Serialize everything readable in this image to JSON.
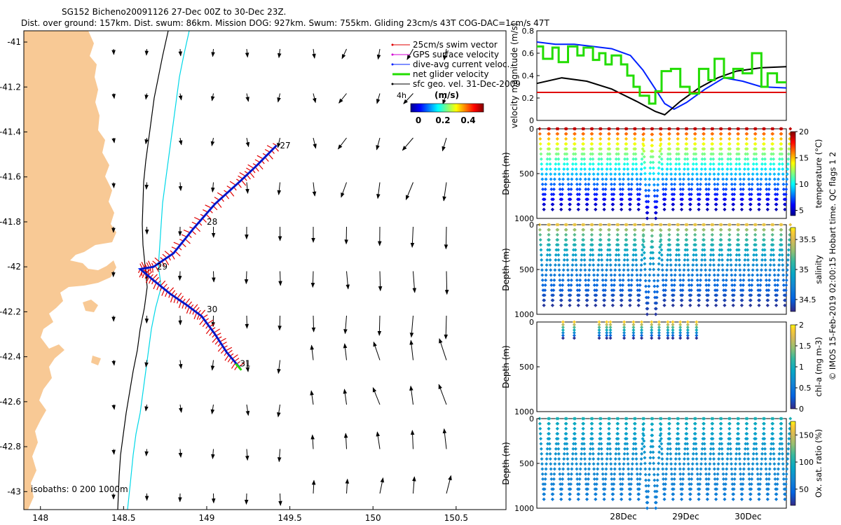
{
  "header": {
    "title": "SG152 Bicheno20091126 27-Dec 00Z to 30-Dec 23Z.",
    "subtitle": "Dist. over ground: 157km. Dist. swum: 86km. Mission DOG: 927km. Swum: 755km. Gliding 23cm/s 43T COG-DAC=1cm/s 47T"
  },
  "side_text": "© IMOS 15-Feb-2019 02:00:15 Hobart time. QC flags 1  2",
  "colors": {
    "land": "#f8c995",
    "swim": "#e00000",
    "gps": "#d400d4",
    "dac": "#0020ff",
    "net": "#22dd00",
    "sfc": "#000000",
    "iso0": "#000000",
    "iso200": "#00d8e8"
  },
  "chart_data": [
    {
      "id": "map",
      "type": "scatter",
      "xlim": [
        147.9,
        150.8
      ],
      "ylim": [
        -43.08,
        -40.95
      ],
      "xticks": [
        148,
        148.5,
        149,
        149.5,
        150,
        150.5
      ],
      "xtick_labels": [
        "148",
        "148.5",
        "149",
        "149.5",
        "150",
        "150.5"
      ],
      "yticks": [
        -41,
        -41.2,
        -41.4,
        -41.6,
        -41.8,
        -42,
        -42.2,
        -42.4,
        -42.6,
        -42.8,
        -43
      ],
      "ytick_labels": [
        "-41",
        "-41.2",
        "-41.4",
        "-41.6",
        "-41.8",
        "-42",
        "-42.2",
        "-42.4",
        "-42.6",
        "-42.8",
        "-43"
      ],
      "legend": {
        "entries": [
          "25cm/s swim vector",
          "GPS surface velocity",
          "dive-avg current veloc.",
          "net glider velocity",
          "sfc geo. vel. 31-Dec-2009"
        ],
        "colorbar_label": "(m/s)",
        "colorbar_ticks": [
          "0",
          "0.2",
          "0.4"
        ],
        "time_label": "4h",
        "placement": "top-right"
      },
      "isobaths_label": "isobaths: 0   200  1000m",
      "track": {
        "lon": [
          149.42,
          149.3,
          149.2,
          149.05,
          148.92,
          148.8,
          148.68,
          148.6,
          148.68,
          148.78,
          148.88,
          148.97,
          149.05,
          149.12,
          149.2
        ],
        "lat": [
          -41.46,
          -41.55,
          -41.62,
          -41.72,
          -41.83,
          -41.94,
          -42.0,
          -42.01,
          -42.06,
          -42.12,
          -42.17,
          -42.22,
          -42.3,
          -42.38,
          -42.45
        ]
      },
      "day_labels": [
        {
          "text": "27",
          "lon": 149.44,
          "lat": -41.46
        },
        {
          "text": "28",
          "lon": 149.0,
          "lat": -41.8
        },
        {
          "text": "29",
          "lon": 148.7,
          "lat": -42.0
        },
        {
          "text": "30",
          "lon": 149.0,
          "lat": -42.19
        },
        {
          "text": "31",
          "lon": 149.2,
          "lat": -42.43
        }
      ]
    },
    {
      "id": "velocity",
      "type": "line",
      "ylabel": "velocity magnitude (m/s)",
      "ylim": [
        0,
        0.8
      ],
      "yticks": [
        0,
        0.2,
        0.4,
        0.6,
        0.8
      ],
      "ytick_labels": [
        "0",
        "0.2",
        "0.4",
        "0.6",
        "0.8"
      ],
      "xlim": [
        0,
        4
      ],
      "series": [
        {
          "name": "dive-avg current veloc.",
          "x": [
            0,
            0.3,
            0.6,
            0.9,
            1.2,
            1.5,
            1.7,
            1.9,
            2.05,
            2.2,
            2.4,
            2.7,
            3.0,
            3.3,
            3.6,
            4.0
          ],
          "y": [
            0.7,
            0.68,
            0.68,
            0.66,
            0.64,
            0.58,
            0.45,
            0.28,
            0.15,
            0.1,
            0.16,
            0.28,
            0.38,
            0.35,
            0.3,
            0.29
          ]
        },
        {
          "name": "sfc geo. vel. 31-Dec-2009",
          "x": [
            0,
            0.4,
            0.8,
            1.2,
            1.6,
            1.9,
            2.05,
            2.3,
            2.6,
            2.9,
            3.2,
            3.6,
            4.0
          ],
          "y": [
            0.33,
            0.38,
            0.35,
            0.28,
            0.17,
            0.08,
            0.05,
            0.17,
            0.29,
            0.38,
            0.44,
            0.47,
            0.48
          ]
        },
        {
          "name": "reference",
          "x": [
            0,
            4
          ],
          "y": [
            0.25,
            0.25
          ]
        },
        {
          "name": "net glider velocity",
          "x": [
            0,
            0.1,
            0.1,
            0.25,
            0.25,
            0.35,
            0.35,
            0.5,
            0.5,
            0.65,
            0.65,
            0.75,
            0.75,
            0.9,
            0.9,
            1.0,
            1.0,
            1.1,
            1.1,
            1.2,
            1.2,
            1.35,
            1.35,
            1.45,
            1.45,
            1.55,
            1.55,
            1.65,
            1.65,
            1.8,
            1.8,
            1.9,
            1.9,
            2.0,
            2.0,
            2.15,
            2.15,
            2.3,
            2.3,
            2.45,
            2.45,
            2.6,
            2.6,
            2.75,
            2.75,
            2.85,
            2.85,
            3.0,
            3.0,
            3.15,
            3.15,
            3.3,
            3.3,
            3.45,
            3.45,
            3.6,
            3.6,
            3.7,
            3.7,
            3.85,
            3.85,
            4.0
          ],
          "y": [
            0.66,
            0.66,
            0.55,
            0.55,
            0.65,
            0.65,
            0.52,
            0.52,
            0.66,
            0.66,
            0.58,
            0.58,
            0.65,
            0.65,
            0.54,
            0.54,
            0.6,
            0.6,
            0.5,
            0.5,
            0.58,
            0.58,
            0.5,
            0.5,
            0.4,
            0.4,
            0.3,
            0.3,
            0.22,
            0.22,
            0.15,
            0.15,
            0.26,
            0.26,
            0.44,
            0.44,
            0.46,
            0.46,
            0.3,
            0.3,
            0.24,
            0.24,
            0.46,
            0.46,
            0.36,
            0.36,
            0.55,
            0.55,
            0.38,
            0.38,
            0.46,
            0.46,
            0.42,
            0.42,
            0.6,
            0.6,
            0.3,
            0.3,
            0.42,
            0.42,
            0.34,
            0.34
          ]
        }
      ]
    },
    {
      "id": "temperature",
      "type": "scatter",
      "ylabel": "Depth (m)",
      "cbar_label": "temperature (°C)",
      "cbar_range": [
        4,
        20
      ],
      "cbar_ticks": [
        5,
        10,
        15,
        20
      ],
      "cbar_tick_labels": [
        "5",
        "10",
        "15",
        "20"
      ],
      "ylim": [
        1000,
        0
      ],
      "yticks": [
        500,
        1000
      ],
      "ytick_labels": [
        "500",
        "1000"
      ],
      "n_dives": 29,
      "max_depth": 1000,
      "surface_value": 19,
      "deep_value": 4.8
    },
    {
      "id": "salinity",
      "type": "scatter",
      "ylabel": "Depth (m)",
      "cbar_label": "salinity",
      "cbar_range": [
        34.3,
        35.7
      ],
      "cbar_ticks": [
        34.5,
        35,
        35.5
      ],
      "cbar_tick_labels": [
        "34.5",
        "35",
        "35.5"
      ],
      "ylim": [
        1000,
        0
      ],
      "yticks": [
        500,
        1000
      ],
      "ytick_labels": [
        "500",
        "1000"
      ],
      "n_dives": 29,
      "max_depth": 1000,
      "surface_value": 35.55,
      "deep_value": 34.35
    },
    {
      "id": "chla",
      "type": "scatter",
      "ylabel": "Depth (m)",
      "cbar_label": "chl-a (mg m-3)",
      "cbar_range": [
        0,
        2
      ],
      "cbar_ticks": [
        0,
        0.5,
        1,
        1.5,
        2
      ],
      "cbar_tick_labels": [
        "0",
        "0.5",
        "1",
        "1.5",
        "2"
      ],
      "ylim": [
        1000,
        0
      ],
      "yticks": [
        500,
        1000
      ],
      "ytick_labels": [
        "500",
        "1000"
      ],
      "profiles_day": [
        0.42,
        0.6,
        1.0,
        1.12,
        1.18,
        1.4,
        1.55,
        1.68,
        1.84,
        1.96,
        2.1,
        2.18,
        2.3,
        2.42,
        2.56
      ],
      "max_depth": 180,
      "surface_value": 1.9,
      "deep_value": 0.05
    },
    {
      "id": "oxygen",
      "type": "scatter",
      "ylabel": "Depth (m)",
      "cbar_label": "Ox. sat. ratio (%)",
      "cbar_range": [
        20,
        175
      ],
      "cbar_ticks": [
        50,
        100,
        150
      ],
      "cbar_tick_labels": [
        "50",
        "100",
        "150"
      ],
      "ylim": [
        1000,
        0
      ],
      "yticks": [
        500,
        1000
      ],
      "ytick_labels": [
        "500",
        "1000"
      ],
      "n_dives": 29,
      "max_depth": 1000,
      "surface_value": 100,
      "deep_value": 60
    },
    {
      "id": "time_axis",
      "type": "table",
      "xlabels": [
        "28Dec",
        "29Dec",
        "30Dec"
      ],
      "label_days": [
        1.5,
        2.5,
        3.5
      ]
    }
  ]
}
